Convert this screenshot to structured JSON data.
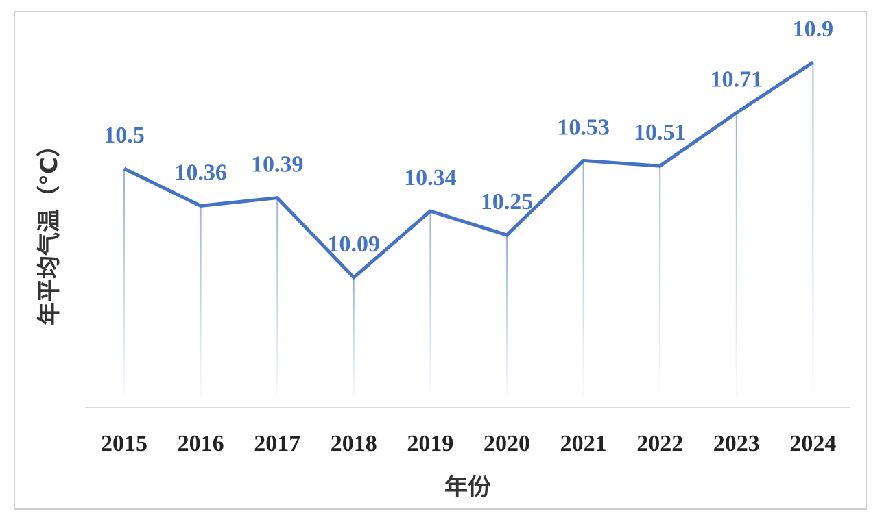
{
  "chart_data": {
    "type": "line",
    "title": "",
    "xlabel": "年份",
    "ylabel": "年平均气温（°C）",
    "x": [
      "2015",
      "2016",
      "2017",
      "2018",
      "2019",
      "2020",
      "2021",
      "2022",
      "2023",
      "2024"
    ],
    "series": [
      {
        "values": [
          10.5,
          10.36,
          10.39,
          10.09,
          10.34,
          10.25,
          10.53,
          10.51,
          10.71,
          10.9
        ],
        "labels": [
          "10.5",
          "10.36",
          "10.39",
          "10.09",
          "10.34",
          "10.25",
          "10.53",
          "10.51",
          "10.71",
          "10.9"
        ],
        "color": "#4472C4"
      }
    ],
    "ylim": [
      9.6,
      10.9
    ],
    "grid": false,
    "drop_lines": true,
    "legend": "none"
  }
}
